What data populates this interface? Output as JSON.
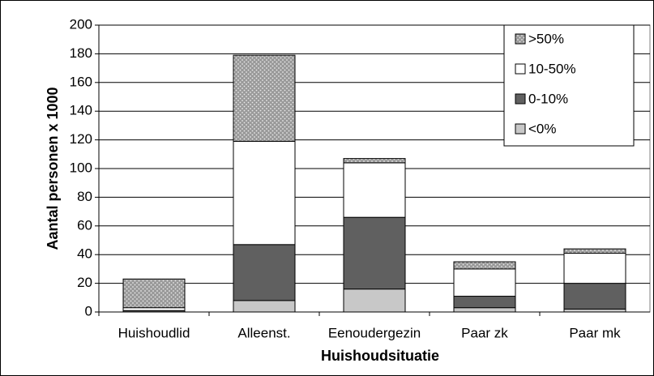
{
  "chart_data": {
    "type": "stacked_bar",
    "x_label": "Huishoudsituatie",
    "y_label": "Aantal personen x 1000",
    "categories": [
      "Huishoudlid",
      "Alleenst.",
      "Eenoudergezin",
      "Paar zk",
      "Paar mk"
    ],
    "series": [
      {
        "name": "<0%",
        "color": "#c8c8c8",
        "values": [
          0,
          8,
          16,
          3,
          2
        ]
      },
      {
        "name": "0-10%",
        "color": "#606060",
        "values": [
          1,
          39,
          50,
          8,
          18
        ]
      },
      {
        "name": "10-50%",
        "color": "#ffffff",
        "values": [
          2,
          72,
          38,
          19,
          21
        ]
      },
      {
        "name": ">50%",
        "color": "#999999",
        "pattern": "dotted",
        "values": [
          20,
          60,
          3,
          5,
          3
        ]
      }
    ],
    "ylim": [
      0,
      200
    ],
    "yticks": [
      0,
      20,
      40,
      60,
      80,
      100,
      120,
      140,
      160,
      180,
      200
    ],
    "grid": true,
    "legend": "upper right"
  }
}
